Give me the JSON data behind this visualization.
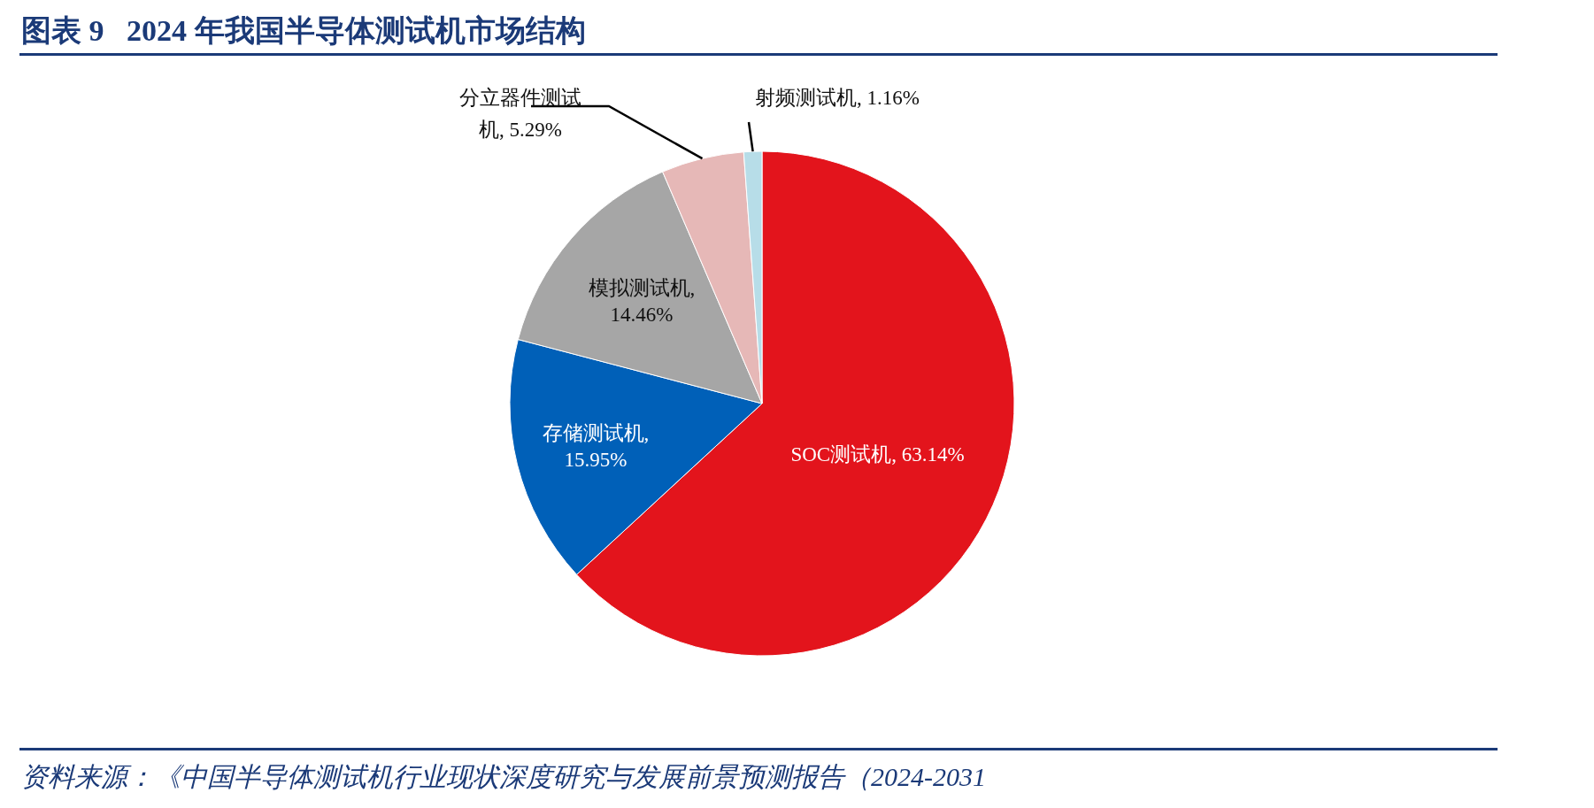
{
  "chart_data": {
    "type": "pie",
    "title": "图表 9   2024 年我国半导体测试机市场结构",
    "categories": [
      "SOC测试机",
      "存储测试机",
      "模拟测试机",
      "分立器件测试机",
      "射频测试机"
    ],
    "values": [
      63.14,
      15.95,
      14.46,
      5.29,
      1.16
    ],
    "colors": [
      "#e3141c",
      "#0060b8",
      "#a6a6a6",
      "#e6b8b7",
      "#b7dde8"
    ],
    "value_labels": [
      ", 63.14%",
      ", 15.95%",
      ", 14.46%",
      ", 5.29%",
      ", 1.16%"
    ],
    "annotations": [
      "资料来源：《中国半导体测试机行业现状深度研究与发展前景预测报告（2024-2031"
    ]
  }
}
